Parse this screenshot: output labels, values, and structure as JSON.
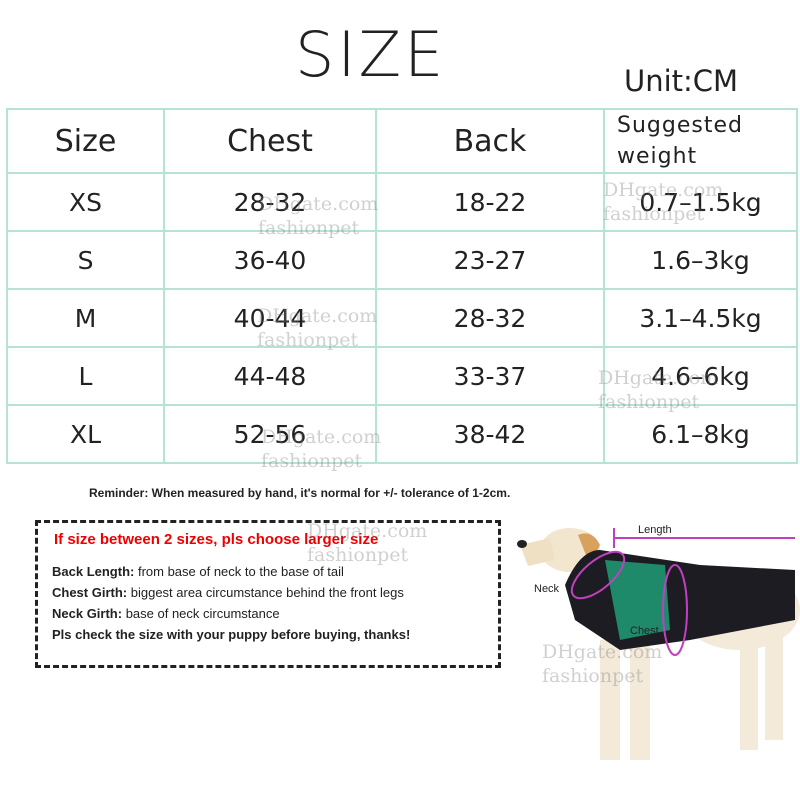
{
  "title": "SIZE",
  "unit": "Unit:CM",
  "table": {
    "headers": [
      "Size",
      "Chest",
      "Back",
      "Suggested weight"
    ],
    "rows": [
      [
        "XS",
        "28-32",
        "18-22",
        "0.7–1.5kg"
      ],
      [
        "S",
        "36-40",
        "23-27",
        "1.6–3kg"
      ],
      [
        "M",
        "40-44",
        "28-32",
        "3.1–4.5kg"
      ],
      [
        "L",
        "44-48",
        "33-37",
        "4.6–6kg"
      ],
      [
        "XL",
        "52-56",
        "38-42",
        "6.1–8kg"
      ]
    ]
  },
  "reminder": "Reminder: When measured by hand, it's normal for +/- tolerance of 1-2cm.",
  "notes": {
    "headline": "If size between  2 sizes, pls choose larger size",
    "items": [
      {
        "label": "Back Length:",
        "text": " from base of neck to the base of tail"
      },
      {
        "label": "Chest Girth:",
        "text": " biggest area circumstance behind the front legs"
      },
      {
        "label": "Neck Girth:",
        "text": " base of neck circumstance"
      },
      {
        "label": "Pls check the size with your puppy before buying, thanks!",
        "text": ""
      }
    ]
  },
  "diagram": {
    "length": "Length",
    "neck": "Neck",
    "chest": "Chest"
  },
  "watermark": {
    "line1": "DHgate.com",
    "line2": "fashionpet"
  },
  "colors": {
    "grid": "#b7e3d6",
    "headline": "#ee0000",
    "measure": "#c040c0",
    "vest": "#1c1c22",
    "vest_panel": "#1f8a6a"
  }
}
